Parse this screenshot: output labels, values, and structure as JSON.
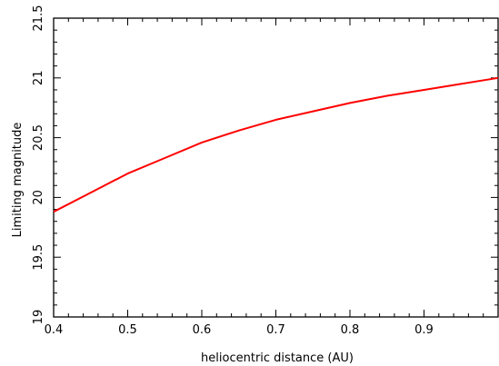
{
  "chart_data": {
    "type": "line",
    "xlabel": "heliocentric distance (AU)",
    "ylabel": "Limiting magnitude",
    "xlim": [
      0.4,
      1.0
    ],
    "ylim": [
      19.0,
      21.5
    ],
    "x_ticks": [
      0.4,
      0.5,
      0.6,
      0.7,
      0.8,
      0.9
    ],
    "x_tick_labels": [
      "0.4",
      "0.5",
      "0.6",
      "0.7",
      "0.8",
      "0.9"
    ],
    "y_ticks": [
      19.0,
      19.5,
      20.0,
      20.5,
      21.0,
      21.5
    ],
    "y_tick_labels": [
      "19",
      "19.5",
      "20",
      "20.5",
      "21",
      "21.5"
    ],
    "grid": false,
    "legend": "none",
    "series": [
      {
        "color": "#ff0000",
        "x": [
          0.4,
          0.45,
          0.5,
          0.55,
          0.6,
          0.65,
          0.7,
          0.75,
          0.8,
          0.85,
          0.9,
          0.95,
          1.0
        ],
        "y": [
          19.88,
          20.04,
          20.2,
          20.33,
          20.46,
          20.56,
          20.65,
          20.72,
          20.79,
          20.85,
          20.9,
          20.95,
          21.0
        ]
      }
    ]
  }
}
